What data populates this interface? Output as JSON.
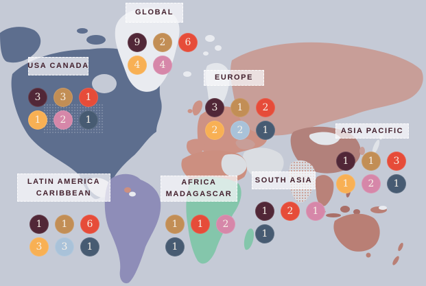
{
  "palette": {
    "maroon": "#512737",
    "tan": "#c28e55",
    "red": "#e64c39",
    "yellow": "#f8b054",
    "pink": "#d687a9",
    "blue": "#a9c2d9",
    "slate": "#475b72"
  },
  "map": {
    "colors": {
      "ocean": "#c5cad6",
      "north_america": "#5d6e8e",
      "central_america": "#d6d9de",
      "greenland": "#e9ebf0",
      "south_america": "#8e8db8",
      "europe": "#cd9285",
      "scandinavia": "#e3e6eb",
      "russia": "#c89e98",
      "china": "#b2817b",
      "mongolia": "#e3e6eb",
      "india_base": "#d9dce1",
      "india_dots": "#c88f82",
      "middle_east": "#dadde2",
      "turkey": "#c89e98",
      "north_africa": "#cc8f80",
      "egypt_libya": "#dadde2",
      "sub_africa": "#84c6ab",
      "madagascar": "#84c6ab",
      "indochina": "#b98279",
      "southeast_asia": "#a96f68",
      "japan": "#e0e3e8",
      "korea": "#c89e98",
      "australia": "#b97f75",
      "new_zealand": "#b97f75",
      "french_guiana": "#cc8f80",
      "suriname": "#e9ebf0",
      "stipple": "rgba(255,255,255,0.38)"
    }
  },
  "groups": [
    {
      "id": "global",
      "label_lines": [
        "GLOBAL"
      ],
      "rows": [
        [
          {
            "value": "9",
            "color": "maroon"
          },
          {
            "value": "2",
            "color": "tan"
          },
          {
            "value": "6",
            "color": "red"
          }
        ],
        [
          {
            "value": "4",
            "color": "yellow"
          },
          {
            "value": "4",
            "color": "pink"
          }
        ]
      ]
    },
    {
      "id": "usa_canada",
      "label_lines": [
        "USA CANADA"
      ],
      "rows": [
        [
          {
            "value": "3",
            "color": "maroon"
          },
          {
            "value": "3",
            "color": "tan"
          },
          {
            "value": "1",
            "color": "red"
          }
        ],
        [
          {
            "value": "1",
            "color": "yellow"
          },
          {
            "value": "2",
            "color": "pink"
          },
          {
            "value": "1",
            "color": "slate"
          }
        ]
      ]
    },
    {
      "id": "europe",
      "label_lines": [
        "EUROPE"
      ],
      "rows": [
        [
          {
            "value": "3",
            "color": "maroon"
          },
          {
            "value": "1",
            "color": "tan"
          },
          {
            "value": "2",
            "color": "red"
          }
        ],
        [
          {
            "value": "2",
            "color": "yellow"
          },
          {
            "value": "2",
            "color": "blue"
          },
          {
            "value": "1",
            "color": "slate"
          }
        ]
      ]
    },
    {
      "id": "asia_pacific",
      "label_lines": [
        "ASIA PACIFIC"
      ],
      "rows": [
        [
          {
            "value": "1",
            "color": "maroon"
          },
          {
            "value": "1",
            "color": "tan"
          },
          {
            "value": "3",
            "color": "red"
          }
        ],
        [
          {
            "value": "1",
            "color": "yellow"
          },
          {
            "value": "2",
            "color": "pink"
          },
          {
            "value": "1",
            "color": "slate"
          }
        ]
      ]
    },
    {
      "id": "latin_america",
      "label_lines": [
        "LATIN AMERICA",
        "CARIBBEAN"
      ],
      "rows": [
        [
          {
            "value": "1",
            "color": "maroon"
          },
          {
            "value": "1",
            "color": "tan"
          },
          {
            "value": "6",
            "color": "red"
          }
        ],
        [
          {
            "value": "3",
            "color": "yellow"
          },
          {
            "value": "3",
            "color": "blue"
          },
          {
            "value": "1",
            "color": "slate"
          }
        ]
      ]
    },
    {
      "id": "africa",
      "label_lines": [
        "AFRICA",
        "MADAGASCAR"
      ],
      "rows": [
        [
          {
            "value": "1",
            "color": "tan"
          },
          {
            "value": "1",
            "color": "red"
          },
          {
            "value": "2",
            "color": "pink"
          }
        ],
        [
          {
            "value": "1",
            "color": "slate"
          }
        ]
      ]
    },
    {
      "id": "south_asia",
      "label_lines": [
        "SOUTH ASIA"
      ],
      "rows": [
        [
          {
            "value": "1",
            "color": "maroon"
          },
          {
            "value": "2",
            "color": "red"
          },
          {
            "value": "1",
            "color": "pink"
          }
        ],
        [
          {
            "value": "1",
            "color": "slate"
          }
        ]
      ]
    }
  ]
}
